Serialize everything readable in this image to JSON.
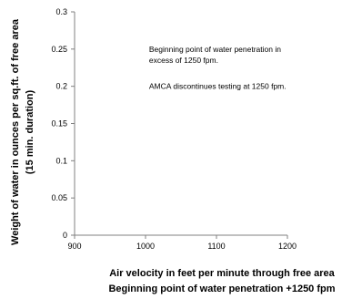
{
  "chart_data": {
    "type": "scatter",
    "title": "",
    "xlabel": "Air velocity in feet per minute through free area",
    "xlabel_line2": "Beginning point of water penetration +1250 fpm",
    "ylabel": "Weight of water in ounces per sq.ft. of free area",
    "ylabel_line2": "(15 min. duration)",
    "xlim": [
      900,
      1200
    ],
    "ylim": [
      0,
      0.3
    ],
    "x_ticks": [
      900,
      1000,
      1100,
      1200
    ],
    "x_tick_labels": [
      "900",
      "1000",
      "1100",
      "1200"
    ],
    "y_ticks": [
      0,
      0.05,
      0.1,
      0.15,
      0.2,
      0.25,
      0.3
    ],
    "y_tick_labels": [
      "0",
      "0.05",
      "0.1",
      "0.15",
      "0.2",
      "0.25",
      "0.3"
    ],
    "grid": false,
    "series": [],
    "annotations": [
      {
        "text": "Beginning point of water penetration in",
        "x": 1005,
        "y": 0.25
      },
      {
        "text": "excess of 1250 fpm.",
        "x": 1005,
        "y": 0.235
      },
      {
        "text": "AMCA discontinues testing at 1250 fpm.",
        "x": 1005,
        "y": 0.2
      }
    ]
  }
}
